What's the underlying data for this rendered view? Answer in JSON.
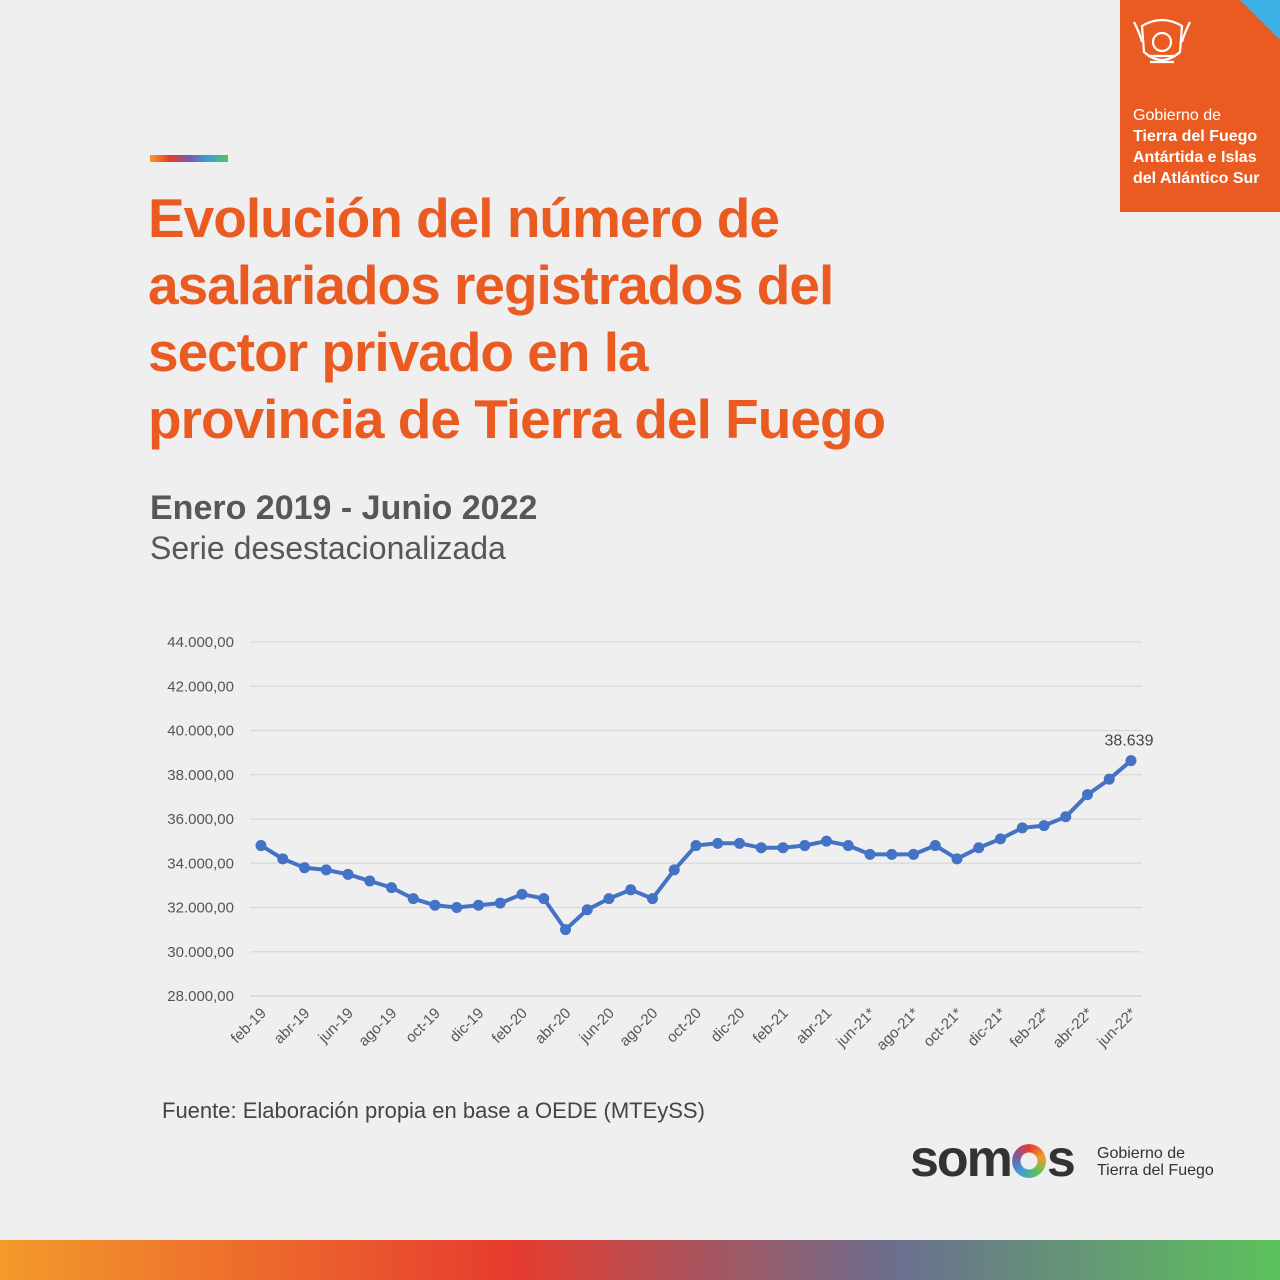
{
  "header": {
    "title_lines": [
      "Evolución del número de",
      "asalariados registrados del",
      "sector privado en la",
      "provincia de Tierra del Fuego"
    ],
    "subtitle": "Enero 2019 - Junio 2022",
    "subtitle2": "Serie desestacionalizada"
  },
  "gov_logo": {
    "line1": "Gobierno de",
    "line2": "Tierra del Fuego",
    "line3": "Antártida e Islas",
    "line4": "del Atlántico Sur"
  },
  "chart_data": {
    "type": "line",
    "title": "Evolución del número de asalariados registrados del sector privado en la provincia de Tierra del Fuego",
    "ylim": [
      28000,
      44000
    ],
    "y_ticks": [
      "28.000,00",
      "30.000,00",
      "32.000,00",
      "34.000,00",
      "36.000,00",
      "38.000,00",
      "40.000,00",
      "42.000,00",
      "44.000,00"
    ],
    "y_tick_values": [
      28000,
      30000,
      32000,
      34000,
      36000,
      38000,
      40000,
      42000,
      44000
    ],
    "x_labels": [
      "feb-19",
      "abr-19",
      "jun-19",
      "ago-19",
      "oct-19",
      "dic-19",
      "feb-20",
      "abr-20",
      "jun-20",
      "ago-20",
      "oct-20",
      "dic-20",
      "feb-21",
      "abr-21",
      "jun-21*",
      "ago-21*",
      "oct-21*",
      "dic-21*",
      "feb-22*",
      "abr-22*",
      "jun-22*"
    ],
    "x_label_index": [
      0,
      2,
      4,
      6,
      8,
      10,
      12,
      14,
      16,
      18,
      20,
      22,
      24,
      26,
      28,
      30,
      32,
      34,
      36,
      38,
      40
    ],
    "series": [
      {
        "name": "Asalariados registrados",
        "color": "#4472c4",
        "values": [
          34800,
          34200,
          33800,
          33700,
          33500,
          33200,
          32900,
          32400,
          32100,
          32000,
          32100,
          32200,
          32600,
          32400,
          31000,
          31900,
          32400,
          32800,
          32400,
          33700,
          34800,
          34900,
          34900,
          34700,
          34700,
          34800,
          35000,
          34800,
          34400,
          34400,
          34400,
          34800,
          34200,
          34700,
          35100,
          35600,
          35700,
          36100,
          37100,
          37800,
          38639
        ]
      }
    ],
    "last_label": "38.639",
    "grid": true
  },
  "footer": {
    "source": "Fuente: Elaboración propia en base a OEDE (MTEySS)",
    "somos_left": "som",
    "somos_right": "s",
    "somos_sub1": "Gobierno de",
    "somos_sub2": "Tierra del Fuego"
  }
}
